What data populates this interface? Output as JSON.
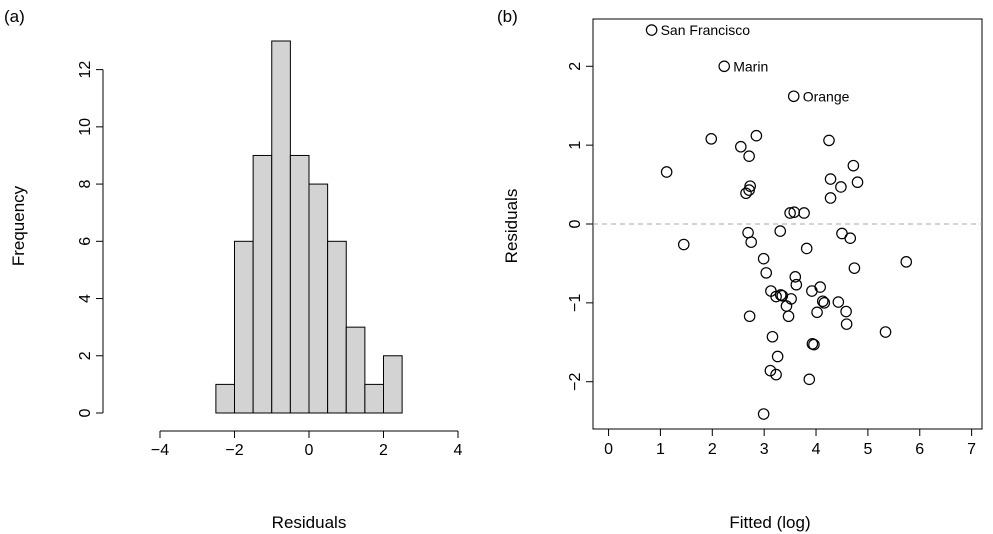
{
  "chart_data": [
    {
      "panel_label": "(a)",
      "type": "bar",
      "xlabel": "Residuals",
      "ylabel": "Frequency",
      "xlim": [
        -4,
        4
      ],
      "ylim": [
        0,
        13
      ],
      "x_ticks": [
        -4,
        -2,
        0,
        2,
        4
      ],
      "x_tick_labels": [
        "−4",
        "−2",
        "0",
        "2",
        "4"
      ],
      "y_ticks": [
        0,
        2,
        4,
        6,
        8,
        10,
        12
      ],
      "y_tick_labels": [
        "0",
        "2",
        "4",
        "6",
        "8",
        "10",
        "12"
      ],
      "bin_edges": [
        -2.5,
        -2.0,
        -1.5,
        -1.0,
        -0.5,
        0.0,
        0.5,
        1.0,
        1.5,
        2.0,
        2.5
      ],
      "values": [
        1,
        6,
        9,
        13,
        9,
        8,
        6,
        3,
        1,
        2
      ],
      "bar_color": "#d3d3d3"
    },
    {
      "panel_label": "(b)",
      "type": "scatter",
      "xlabel": "Fitted (log)",
      "ylabel": "Residuals",
      "xlim": [
        -0.3,
        7.2
      ],
      "ylim": [
        -2.6,
        2.6
      ],
      "x_ticks": [
        0,
        1,
        2,
        3,
        4,
        5,
        6,
        7
      ],
      "x_tick_labels": [
        "0",
        "1",
        "2",
        "3",
        "4",
        "5",
        "6",
        "7"
      ],
      "y_ticks": [
        -2,
        -1,
        0,
        1,
        2
      ],
      "y_tick_labels": [
        "−2",
        "−1",
        "0",
        "1",
        "2"
      ],
      "reference_line": {
        "y": 0,
        "style": "dashed",
        "color": "#aaaaaa"
      },
      "points": [
        {
          "x": 0.83,
          "y": 2.46,
          "label": "San Francisco"
        },
        {
          "x": 2.23,
          "y": 2.0,
          "label": "Marin"
        },
        {
          "x": 3.57,
          "y": 1.62,
          "label": "Orange"
        },
        {
          "x": 1.98,
          "y": 1.08
        },
        {
          "x": 2.85,
          "y": 1.12
        },
        {
          "x": 2.55,
          "y": 0.98
        },
        {
          "x": 2.71,
          "y": 0.86
        },
        {
          "x": 4.25,
          "y": 1.06
        },
        {
          "x": 4.72,
          "y": 0.74
        },
        {
          "x": 1.12,
          "y": 0.66
        },
        {
          "x": 4.28,
          "y": 0.57
        },
        {
          "x": 4.8,
          "y": 0.53
        },
        {
          "x": 4.48,
          "y": 0.47
        },
        {
          "x": 2.73,
          "y": 0.48
        },
        {
          "x": 2.65,
          "y": 0.39
        },
        {
          "x": 2.71,
          "y": 0.43
        },
        {
          "x": 4.28,
          "y": 0.33
        },
        {
          "x": 3.5,
          "y": 0.14
        },
        {
          "x": 3.58,
          "y": 0.15
        },
        {
          "x": 3.77,
          "y": 0.14
        },
        {
          "x": 1.45,
          "y": -0.26
        },
        {
          "x": 2.69,
          "y": -0.11
        },
        {
          "x": 2.75,
          "y": -0.23
        },
        {
          "x": 3.31,
          "y": -0.09
        },
        {
          "x": 3.82,
          "y": -0.31
        },
        {
          "x": 4.5,
          "y": -0.12
        },
        {
          "x": 4.66,
          "y": -0.18
        },
        {
          "x": 5.74,
          "y": -0.48
        },
        {
          "x": 2.99,
          "y": -0.44
        },
        {
          "x": 3.04,
          "y": -0.62
        },
        {
          "x": 3.6,
          "y": -0.67
        },
        {
          "x": 3.62,
          "y": -0.77
        },
        {
          "x": 4.74,
          "y": -0.56
        },
        {
          "x": 3.13,
          "y": -0.85
        },
        {
          "x": 3.23,
          "y": -0.92
        },
        {
          "x": 3.32,
          "y": -0.9
        },
        {
          "x": 3.35,
          "y": -0.91
        },
        {
          "x": 3.52,
          "y": -0.95
        },
        {
          "x": 3.43,
          "y": -1.04
        },
        {
          "x": 3.92,
          "y": -0.85
        },
        {
          "x": 4.08,
          "y": -0.8
        },
        {
          "x": 4.13,
          "y": -0.98
        },
        {
          "x": 4.16,
          "y": -1.0
        },
        {
          "x": 4.43,
          "y": -0.99
        },
        {
          "x": 4.58,
          "y": -1.11
        },
        {
          "x": 4.02,
          "y": -1.12
        },
        {
          "x": 3.47,
          "y": -1.17
        },
        {
          "x": 2.72,
          "y": -1.17
        },
        {
          "x": 4.59,
          "y": -1.27
        },
        {
          "x": 5.34,
          "y": -1.37
        },
        {
          "x": 3.16,
          "y": -1.43
        },
        {
          "x": 3.93,
          "y": -1.52
        },
        {
          "x": 3.96,
          "y": -1.53
        },
        {
          "x": 3.26,
          "y": -1.68
        },
        {
          "x": 3.12,
          "y": -1.86
        },
        {
          "x": 3.23,
          "y": -1.91
        },
        {
          "x": 3.87,
          "y": -1.97
        },
        {
          "x": 2.99,
          "y": -2.41
        }
      ]
    }
  ]
}
